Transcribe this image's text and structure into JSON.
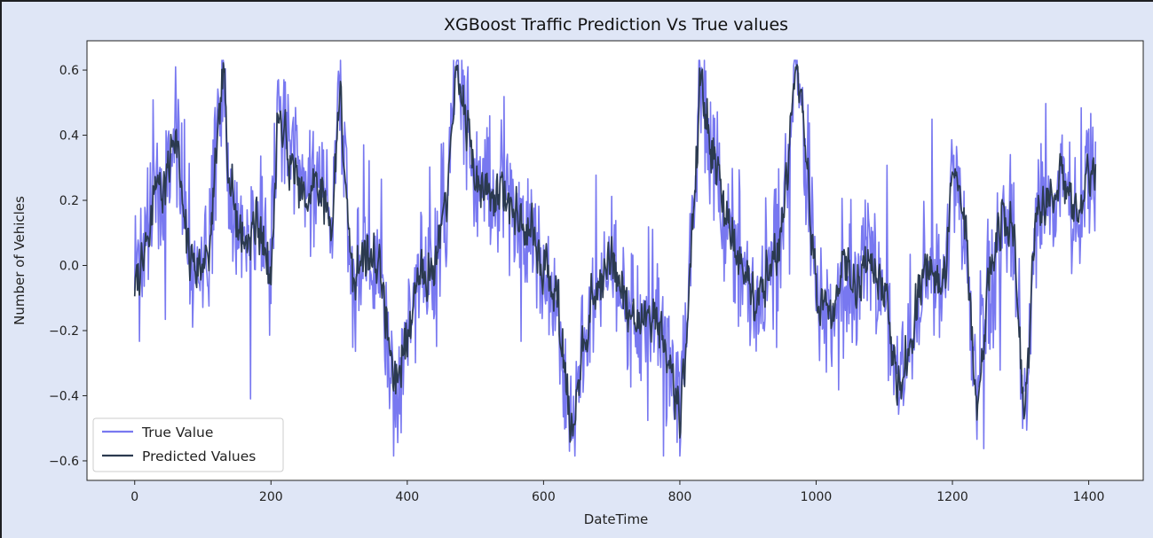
{
  "chart_data": {
    "type": "line",
    "title": "XGBoost Traffic Prediction Vs True values",
    "xlabel": "DateTime",
    "ylabel": "Number of Vehicles",
    "xlim": [
      -70,
      1480
    ],
    "ylim": [
      -0.66,
      0.69
    ],
    "xticks": [
      0,
      200,
      400,
      600,
      800,
      1000,
      1200,
      1400
    ],
    "yticks": [
      -0.6,
      -0.4,
      -0.2,
      0.0,
      0.2,
      0.4,
      0.6
    ],
    "ytick_labels": [
      "−0.6",
      "−0.4",
      "−0.2",
      "0.0",
      "0.2",
      "0.4",
      "0.6"
    ],
    "grid": false,
    "legend_position": "lower-left",
    "series": [
      {
        "name": "True Value",
        "color": "#7878f0",
        "anchors": [
          [
            0,
            0.05
          ],
          [
            10,
            -0.05
          ],
          [
            20,
            0.1
          ],
          [
            30,
            0.35
          ],
          [
            40,
            0.15
          ],
          [
            50,
            0.3
          ],
          [
            60,
            0.45
          ],
          [
            70,
            0.15
          ],
          [
            80,
            0.0
          ],
          [
            90,
            -0.05
          ],
          [
            100,
            0.0
          ],
          [
            110,
            0.05
          ],
          [
            120,
            0.35
          ],
          [
            130,
            0.6
          ],
          [
            140,
            0.25
          ],
          [
            160,
            0.05
          ],
          [
            180,
            0.15
          ],
          [
            200,
            0.0
          ],
          [
            210,
            0.5
          ],
          [
            230,
            0.35
          ],
          [
            250,
            0.2
          ],
          [
            270,
            0.25
          ],
          [
            290,
            0.15
          ],
          [
            300,
            0.6
          ],
          [
            310,
            0.2
          ],
          [
            320,
            -0.1
          ],
          [
            340,
            0.05
          ],
          [
            360,
            0.0
          ],
          [
            380,
            -0.4
          ],
          [
            400,
            -0.2
          ],
          [
            420,
            0.0
          ],
          [
            440,
            -0.05
          ],
          [
            460,
            0.25
          ],
          [
            470,
            0.6
          ],
          [
            480,
            0.5
          ],
          [
            500,
            0.3
          ],
          [
            520,
            0.2
          ],
          [
            540,
            0.25
          ],
          [
            560,
            0.15
          ],
          [
            580,
            0.1
          ],
          [
            600,
            0.0
          ],
          [
            620,
            -0.15
          ],
          [
            640,
            -0.5
          ],
          [
            660,
            -0.2
          ],
          [
            680,
            -0.05
          ],
          [
            700,
            0.0
          ],
          [
            720,
            -0.1
          ],
          [
            740,
            -0.2
          ],
          [
            760,
            -0.15
          ],
          [
            780,
            -0.3
          ],
          [
            800,
            -0.5
          ],
          [
            810,
            -0.2
          ],
          [
            830,
            0.6
          ],
          [
            850,
            0.3
          ],
          [
            870,
            0.15
          ],
          [
            890,
            0.0
          ],
          [
            910,
            -0.1
          ],
          [
            930,
            0.0
          ],
          [
            950,
            0.1
          ],
          [
            970,
            0.6
          ],
          [
            980,
            0.45
          ],
          [
            990,
            0.2
          ],
          [
            1000,
            -0.1
          ],
          [
            1020,
            -0.2
          ],
          [
            1040,
            0.0
          ],
          [
            1060,
            -0.05
          ],
          [
            1080,
            0.05
          ],
          [
            1100,
            -0.1
          ],
          [
            1120,
            -0.4
          ],
          [
            1140,
            -0.2
          ],
          [
            1160,
            0.0
          ],
          [
            1180,
            -0.1
          ],
          [
            1190,
            0.0
          ],
          [
            1200,
            0.3
          ],
          [
            1220,
            0.1
          ],
          [
            1235,
            -0.45
          ],
          [
            1250,
            -0.1
          ],
          [
            1270,
            0.15
          ],
          [
            1290,
            0.1
          ],
          [
            1305,
            -0.5
          ],
          [
            1320,
            0.1
          ],
          [
            1340,
            0.2
          ],
          [
            1360,
            0.3
          ],
          [
            1380,
            0.15
          ],
          [
            1400,
            0.3
          ],
          [
            1410,
            0.25
          ]
        ]
      },
      {
        "name": "Predicted Values",
        "color": "#2b3a4f",
        "anchors": [
          [
            0,
            -0.05
          ],
          [
            10,
            0.0
          ],
          [
            20,
            0.05
          ],
          [
            30,
            0.3
          ],
          [
            40,
            0.2
          ],
          [
            50,
            0.3
          ],
          [
            60,
            0.45
          ],
          [
            70,
            0.15
          ],
          [
            80,
            0.02
          ],
          [
            90,
            0.0
          ],
          [
            100,
            0.0
          ],
          [
            110,
            0.05
          ],
          [
            120,
            0.35
          ],
          [
            130,
            0.6
          ],
          [
            140,
            0.25
          ],
          [
            160,
            0.05
          ],
          [
            180,
            0.15
          ],
          [
            200,
            -0.05
          ],
          [
            210,
            0.5
          ],
          [
            230,
            0.3
          ],
          [
            250,
            0.2
          ],
          [
            270,
            0.25
          ],
          [
            290,
            0.15
          ],
          [
            300,
            0.58
          ],
          [
            310,
            0.2
          ],
          [
            320,
            -0.05
          ],
          [
            340,
            0.05
          ],
          [
            360,
            0.0
          ],
          [
            380,
            -0.38
          ],
          [
            400,
            -0.2
          ],
          [
            420,
            0.0
          ],
          [
            440,
            -0.02
          ],
          [
            460,
            0.25
          ],
          [
            470,
            0.58
          ],
          [
            480,
            0.5
          ],
          [
            500,
            0.3
          ],
          [
            520,
            0.2
          ],
          [
            540,
            0.25
          ],
          [
            560,
            0.15
          ],
          [
            580,
            0.1
          ],
          [
            600,
            0.0
          ],
          [
            620,
            -0.12
          ],
          [
            640,
            -0.5
          ],
          [
            660,
            -0.2
          ],
          [
            680,
            -0.05
          ],
          [
            700,
            0.0
          ],
          [
            720,
            -0.1
          ],
          [
            740,
            -0.18
          ],
          [
            760,
            -0.12
          ],
          [
            780,
            -0.28
          ],
          [
            800,
            -0.5
          ],
          [
            810,
            -0.2
          ],
          [
            830,
            0.6
          ],
          [
            850,
            0.3
          ],
          [
            870,
            0.15
          ],
          [
            890,
            0.0
          ],
          [
            910,
            -0.08
          ],
          [
            930,
            0.0
          ],
          [
            950,
            0.1
          ],
          [
            970,
            0.6
          ],
          [
            980,
            0.45
          ],
          [
            990,
            0.2
          ],
          [
            1000,
            -0.08
          ],
          [
            1020,
            -0.18
          ],
          [
            1040,
            0.0
          ],
          [
            1060,
            -0.05
          ],
          [
            1080,
            0.05
          ],
          [
            1100,
            -0.08
          ],
          [
            1120,
            -0.4
          ],
          [
            1140,
            -0.2
          ],
          [
            1160,
            0.0
          ],
          [
            1180,
            -0.08
          ],
          [
            1190,
            0.0
          ],
          [
            1200,
            0.3
          ],
          [
            1220,
            0.1
          ],
          [
            1235,
            -0.45
          ],
          [
            1250,
            -0.1
          ],
          [
            1270,
            0.15
          ],
          [
            1290,
            0.1
          ],
          [
            1305,
            -0.5
          ],
          [
            1320,
            0.1
          ],
          [
            1340,
            0.2
          ],
          [
            1360,
            0.28
          ],
          [
            1380,
            0.15
          ],
          [
            1400,
            0.3
          ],
          [
            1410,
            0.3
          ]
        ]
      }
    ]
  }
}
